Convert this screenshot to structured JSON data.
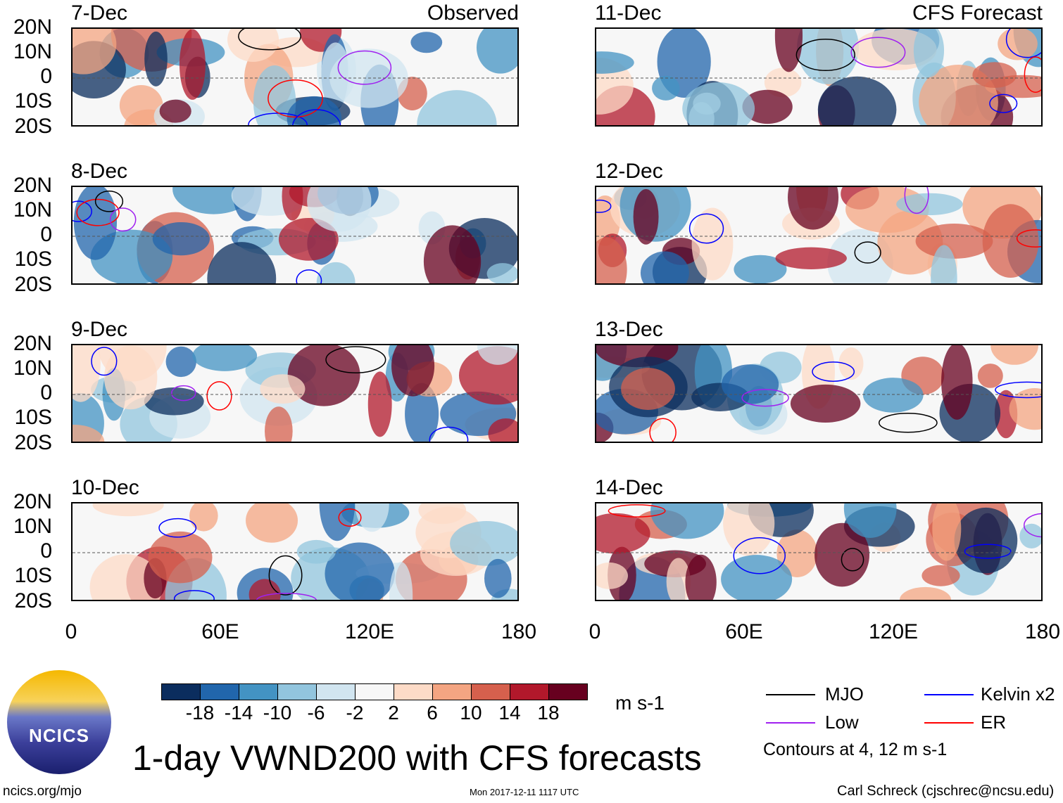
{
  "panels_left": [
    {
      "date": "7-Dec",
      "tag": "Observed"
    },
    {
      "date": "8-Dec"
    },
    {
      "date": "9-Dec"
    },
    {
      "date": "10-Dec"
    }
  ],
  "panels_right": [
    {
      "date": "11-Dec",
      "tag": "CFS Forecast"
    },
    {
      "date": "12-Dec"
    },
    {
      "date": "13-Dec"
    },
    {
      "date": "14-Dec"
    }
  ],
  "y_ticks": [
    "20N",
    "10N",
    "0",
    "10S",
    "20S"
  ],
  "x_ticks": [
    "0",
    "60E",
    "120E",
    "180"
  ],
  "colorbar": {
    "colors": [
      "#0b2d5e",
      "#2166ac",
      "#4393c3",
      "#92c5de",
      "#d1e5f0",
      "#f7f7f7",
      "#fddbc7",
      "#f4a582",
      "#d6604d",
      "#b2182b",
      "#67001f"
    ],
    "labels": [
      "-18",
      "-14",
      "-10",
      "-6",
      "-2",
      "2",
      "6",
      "10",
      "14",
      "18"
    ],
    "units": "m s-1"
  },
  "title": "1-day VWND200 with CFS forecasts",
  "legend": {
    "items": [
      {
        "label": "MJO",
        "color": "#000000"
      },
      {
        "label": "Kelvin x2",
        "color": "#0000ff"
      },
      {
        "label": "Low",
        "color": "#a020f0"
      },
      {
        "label": "ER",
        "color": "#ff0000"
      }
    ],
    "note": "Contours at 4, 12 m s-1"
  },
  "logo": {
    "text": "NCICS"
  },
  "footer": {
    "url": "ncics.org/mjo",
    "timestamp": "Mon 2017-12-11 1117 UTC",
    "credit": "Carl Schreck (cjschrec@ncsu.edu)"
  }
}
